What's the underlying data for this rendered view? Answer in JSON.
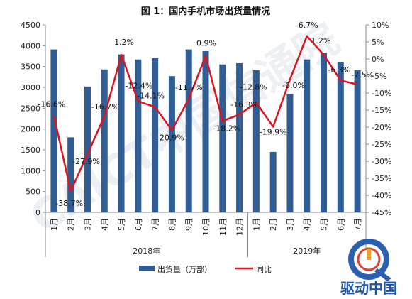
{
  "chart_data": {
    "type": "bar",
    "title": "图 1：国内手机市场出货量情况",
    "categories": [
      "1月",
      "2月",
      "3月",
      "4月",
      "5月",
      "6月",
      "7月",
      "8月",
      "9月",
      "10月",
      "11月",
      "12月",
      "1月",
      "2月",
      "3月",
      "4月",
      "5月",
      "6月",
      "7月"
    ],
    "groups": [
      {
        "label": "2018年",
        "start": 0,
        "end": 11
      },
      {
        "label": "2019年",
        "start": 12,
        "end": 18
      }
    ],
    "series": [
      {
        "name": "出货量（万部）",
        "type": "bar",
        "axis": "left",
        "values": [
          3910,
          1800,
          3020,
          3430,
          3790,
          3670,
          3700,
          3270,
          3910,
          3870,
          3550,
          3580,
          3410,
          1450,
          2840,
          3670,
          3830,
          3600,
          3410
        ]
      },
      {
        "name": "同比",
        "type": "line",
        "axis": "right",
        "values": [
          -16.6,
          -38.7,
          -27.9,
          -16.7,
          1.2,
          -12.4,
          -14.1,
          -20.9,
          -11.7,
          0.9,
          -18.2,
          -16.3,
          -12.8,
          -19.9,
          -6.0,
          6.7,
          1.2,
          -6.3,
          -7.5
        ],
        "labels": [
          "-16.6%",
          "-38.7%",
          "-27.9%",
          "-16.7%",
          "1.2%",
          "-12.4%",
          "-14.1%",
          "-20.9%",
          "-11.7%",
          "0.9%",
          "-18.2%",
          "-16.3%",
          "-12.8%",
          "-19.9%",
          "-6.0%",
          "6.7%",
          "1.2%",
          "-6.3%",
          "-7.5%"
        ]
      }
    ],
    "y_left": {
      "min": 0,
      "max": 4500,
      "step": 500,
      "ticks": [
        "0",
        "500",
        "1000",
        "1500",
        "2000",
        "2500",
        "3000",
        "3500",
        "4000",
        "4500"
      ]
    },
    "y_right": {
      "min": -45,
      "max": 10,
      "step": 5,
      "ticks": [
        "-45%",
        "-40%",
        "-35%",
        "-30%",
        "-25%",
        "-20%",
        "-15%",
        "-10%",
        "-5%",
        "0%",
        "5%",
        "10%"
      ]
    },
    "legend_position": "bottom",
    "grid": false
  },
  "colors": {
    "bar": "#2f5d94",
    "line": "#e0121b",
    "axis": "#888888"
  },
  "watermark": "CAICT中国信通院",
  "logo": {
    "text": "驱动中国",
    "icon": "q-logo-icon"
  }
}
